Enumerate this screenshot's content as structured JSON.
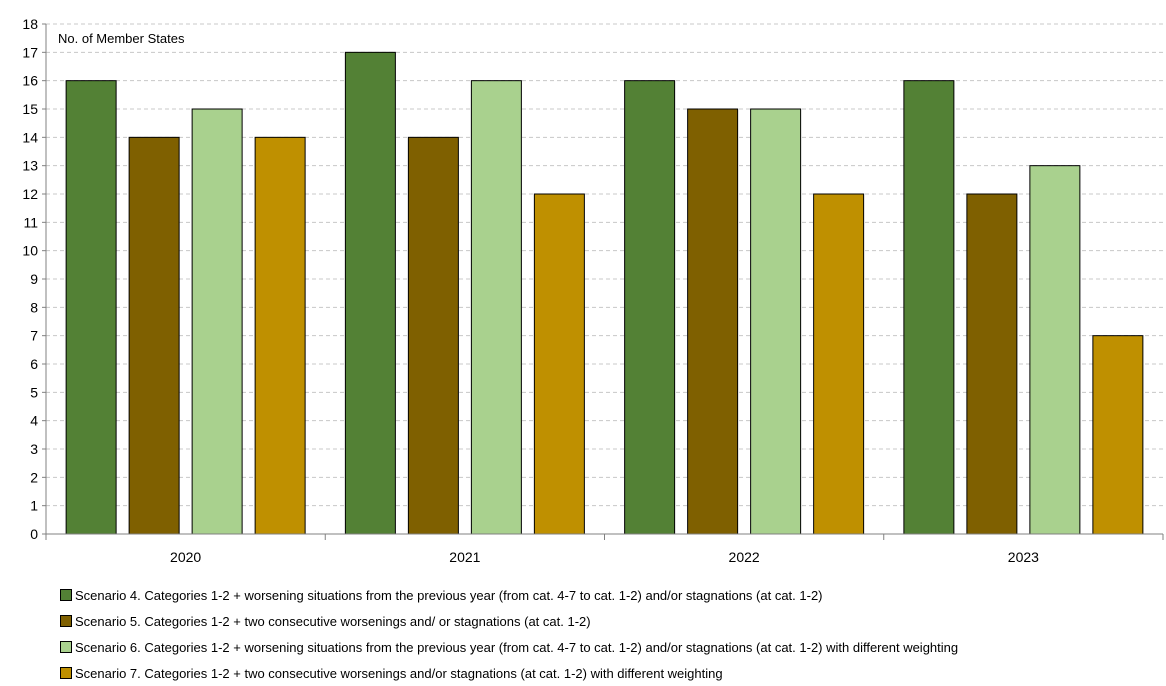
{
  "chart_data": {
    "type": "bar",
    "annotation": "No. of Member States",
    "categories": [
      "2020",
      "2021",
      "2022",
      "2023"
    ],
    "ylim": [
      0,
      18
    ],
    "yticks": [
      "0",
      "1",
      "2",
      "3",
      "4",
      "5",
      "6",
      "7",
      "8",
      "9",
      "10",
      "11",
      "12",
      "13",
      "14",
      "15",
      "16",
      "17",
      "18"
    ],
    "grid": true,
    "legend_position": "bottom",
    "series": [
      {
        "name": "Scenario 4. Categories 1-2 + worsening situations from the previous year (from cat. 4-7 to cat. 1-2) and/or stagnations (at cat. 1-2)",
        "color": "#538135",
        "values": [
          16,
          17,
          16,
          16
        ]
      },
      {
        "name": "Scenario 5. Categories 1-2 + two consecutive worsenings and/ or stagnations (at cat. 1-2)",
        "color": "#7f6000",
        "values": [
          14,
          14,
          15,
          12
        ]
      },
      {
        "name": "Scenario 6. Categories 1-2 + worsening situations from the previous year (from cat. 4-7 to cat. 1-2) and/or stagnations (at cat. 1-2) with different weighting",
        "color": "#a9d18e",
        "values": [
          15,
          16,
          15,
          13
        ]
      },
      {
        "name": "Scenario 7. Categories 1-2 + two consecutive worsenings and/or stagnations (at cat. 1-2) with different weighting",
        "color": "#bf9000",
        "values": [
          14,
          12,
          12,
          7
        ]
      }
    ]
  }
}
